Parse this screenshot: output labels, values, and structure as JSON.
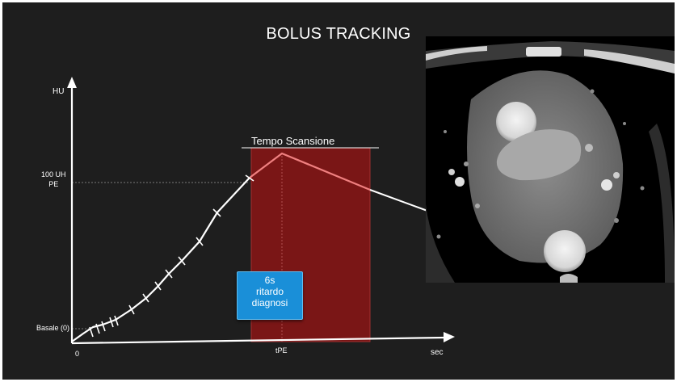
{
  "slide": {
    "title": "BOLUS TRACKING",
    "colors": {
      "background": "#1e1e1e",
      "scan_window": "#7a1616",
      "curve": "#ffffff",
      "curve_in_window": "#f08080",
      "callout": "#1a8fd8"
    }
  },
  "chart": {
    "y_axis_label": "HU",
    "x_axis_label": "sec",
    "origin_label": "0",
    "threshold_label_line1": "100 UH",
    "threshold_label_line2": "PE",
    "baseline_label": "Basale (0)",
    "peak_time_label": "tPE",
    "scan_window_label": "Tempo Scansione"
  },
  "callout": {
    "line1": "6s",
    "line2": "ritardo",
    "line3": "diagnosi"
  },
  "image": {
    "description_icon": "ct-scan-image"
  }
}
